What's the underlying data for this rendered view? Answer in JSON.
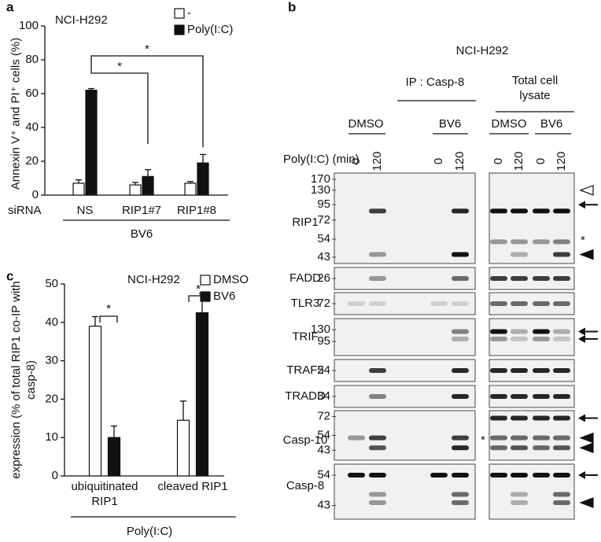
{
  "panel_labels": [
    "a",
    "b",
    "c"
  ],
  "chart_data": [
    {
      "type": "bar",
      "title": "NCI-H292",
      "y_label": "Annexin V⁺ and PI⁺ cells (%)",
      "x_row_label": "siRNA",
      "group_label": "BV6",
      "categories": [
        "NS",
        "RIP1#7",
        "RIP1#8"
      ],
      "series": [
        {
          "name": "-",
          "color": "#ffffff",
          "values": [
            7,
            6,
            7
          ],
          "errors": [
            2,
            1.5,
            1
          ]
        },
        {
          "name": "Poly(I:C)",
          "color": "#111111",
          "values": [
            62,
            11,
            19
          ],
          "errors": [
            1,
            4,
            5
          ]
        }
      ],
      "ylim": [
        0,
        100
      ],
      "yticks": [
        0,
        20,
        40,
        60,
        80,
        100
      ],
      "significance": [
        "*",
        "*"
      ]
    },
    {
      "type": "bar",
      "title": "NCI-H292",
      "y_label": "expression (% of total RIP1 co-IP with casp-8)",
      "group_label": "Poly(I:C)",
      "categories": [
        "ubiquitinated RIP1",
        "cleaved RIP1"
      ],
      "series": [
        {
          "name": "DMSO",
          "color": "#ffffff",
          "values": [
            39,
            14.5
          ],
          "errors": [
            2.5,
            5
          ]
        },
        {
          "name": "BV6",
          "color": "#111111",
          "values": [
            10,
            42.5
          ],
          "errors": [
            3,
            5
          ]
        }
      ],
      "ylim": [
        0,
        50
      ],
      "yticks": [
        0,
        10,
        20,
        30,
        40,
        50
      ],
      "significance": [
        "*",
        "*"
      ]
    }
  ],
  "blot_panel": {
    "title": "NCI-H292",
    "ip_label": "IP : Casp-8",
    "lysate_label": "Total cell lysate",
    "treatments": [
      "DMSO",
      "BV6",
      "DMSO",
      "BV6"
    ],
    "time_label": "Poly(I:C) (min)",
    "times": [
      0,
      120,
      0,
      120,
      0,
      120,
      0,
      120
    ],
    "blots": [
      {
        "name": "RIP1",
        "markers": [
          170,
          130,
          95,
          72,
          54,
          43
        ]
      },
      {
        "name": "FADD",
        "markers": [
          26
        ]
      },
      {
        "name": "TLR3",
        "markers": [
          72
        ]
      },
      {
        "name": "TRIF",
        "markers": [
          130,
          95
        ]
      },
      {
        "name": "TRAF2",
        "markers": [
          54
        ]
      },
      {
        "name": "TRADD",
        "markers": [
          34
        ]
      },
      {
        "name": "Casp-10",
        "markers": [
          72,
          54,
          43
        ]
      },
      {
        "name": "Casp-8",
        "markers": [
          54,
          43
        ]
      }
    ],
    "asterisks": [
      "*",
      "*"
    ]
  }
}
